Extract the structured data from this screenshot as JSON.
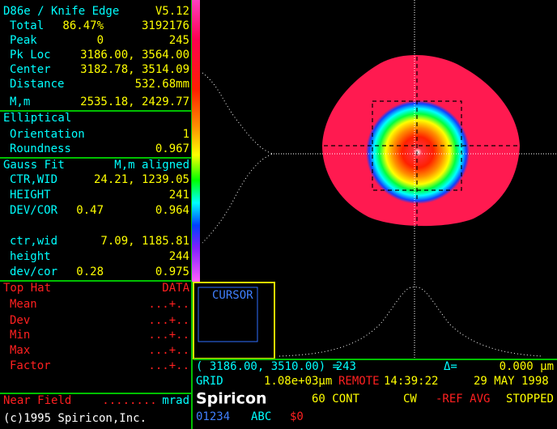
{
  "measurement": {
    "title": "D86e / Knife Edge",
    "version": "V5.12",
    "rows": [
      {
        "label": "Total",
        "mid": "86.47%",
        "value": "3192176"
      },
      {
        "label": "Peak",
        "mid": "0",
        "value": "245"
      },
      {
        "label": "Pk Loc",
        "value": "3186.00, 3564.00"
      },
      {
        "label": "Center",
        "value": "3182.78, 3514.09"
      },
      {
        "label": "Distance",
        "value": "532.68mm"
      },
      {
        "label": "M,m",
        "value": "2535.18, 2429.77"
      }
    ]
  },
  "elliptical": {
    "title": "Elliptical",
    "rows": [
      {
        "label": "Orientation",
        "value": "1"
      },
      {
        "label": "Roundness",
        "value": "0.967"
      }
    ]
  },
  "gauss_fit": {
    "title": "Gauss Fit",
    "mode": "M,m aligned",
    "rows": [
      {
        "label": "CTR,WID",
        "value": "24.21, 1239.05"
      },
      {
        "label": "HEIGHT",
        "value": "241"
      },
      {
        "label": "DEV/COR",
        "mid": "0.47",
        "value": "0.964"
      },
      {
        "label": "ctr,wid",
        "value": "7.09, 1185.81"
      },
      {
        "label": "height",
        "value": "244"
      },
      {
        "label": "dev/cor",
        "mid": "0.28",
        "value": "0.975"
      }
    ]
  },
  "top_hat": {
    "title": "Top Hat",
    "source": "DATA",
    "rows": [
      {
        "label": "Mean",
        "value": "...+.."
      },
      {
        "label": "Dev",
        "value": "...+.."
      },
      {
        "label": "Min",
        "value": "...+.."
      },
      {
        "label": "Max",
        "value": "...+.."
      },
      {
        "label": "Factor",
        "value": "...+.."
      }
    ]
  },
  "near_field": {
    "label": "Near Field",
    "value": "........",
    "unit": "mrad"
  },
  "copyright": "(c)1995 Spiricon,Inc.",
  "cursor": {
    "label": "CURSOR"
  },
  "status": {
    "coords": "( 3186.00, 3510.00) =",
    "level": "243",
    "delta_label": "Δ=",
    "delta": "0.000 µm",
    "grid_label": "GRID",
    "grid": "1.08e+03µm",
    "mode": "REMOTE",
    "time": "14:39:22",
    "date": "29 MAY 1998",
    "brand": "Spiricon",
    "rate": "60 CONT",
    "beam": "CW",
    "ref": "-REF AVG",
    "state": "STOPPED",
    "channels": "01234",
    "abc": "ABC",
    "s": "$0"
  }
}
